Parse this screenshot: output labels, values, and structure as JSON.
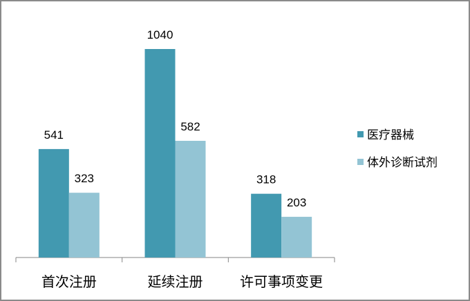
{
  "chart_data": {
    "type": "bar",
    "title": "",
    "xlabel": "",
    "ylabel": "",
    "categories": [
      "首次注册",
      "延续注册",
      "许可事项变更"
    ],
    "series": [
      {
        "name": "医疗器械",
        "values": [
          541,
          1040,
          318
        ],
        "color": "#4299B0"
      },
      {
        "name": "体外诊断试剂",
        "values": [
          323,
          582,
          203
        ],
        "color": "#93C4D4"
      }
    ],
    "ylim": [
      0,
      1040
    ],
    "grid": false,
    "legend_position": "right",
    "data_labels": true
  }
}
